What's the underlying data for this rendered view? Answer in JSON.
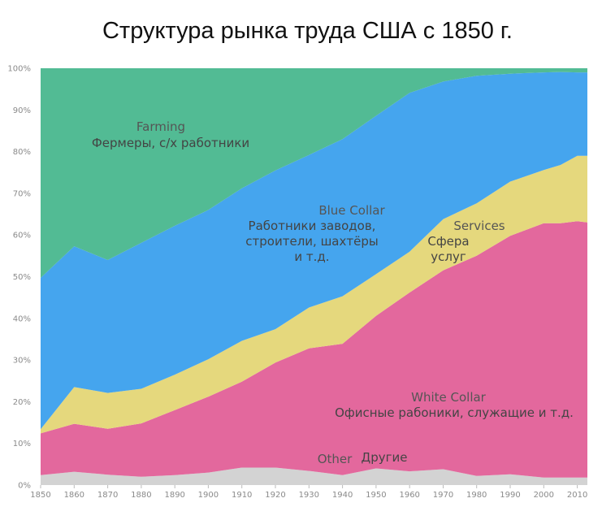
{
  "chart_data": {
    "type": "area",
    "title": "Структура рынка труда США с 1850 г.",
    "x": [
      1850,
      1860,
      1870,
      1880,
      1890,
      1900,
      1910,
      1920,
      1930,
      1940,
      1950,
      1960,
      1970,
      1980,
      1990,
      2000,
      2005,
      2010,
      2013
    ],
    "x_ticks": [
      "1850",
      "1860",
      "1870",
      "1880",
      "1890",
      "1900",
      "1910",
      "1920",
      "1930",
      "1940",
      "1950",
      "1960",
      "1970",
      "1980",
      "1990",
      "2000",
      "2010"
    ],
    "y_ticks": [
      "0%",
      "10%",
      "20%",
      "30%",
      "40%",
      "50%",
      "60%",
      "70%",
      "80%",
      "90%",
      "100%"
    ],
    "ylim": [
      0,
      100
    ],
    "stacked": true,
    "series": [
      {
        "name": "Other",
        "label_ru": "Другие",
        "color": "#d3d3d3",
        "values": [
          2.4,
          3.2,
          2.5,
          2.0,
          2.4,
          3.0,
          4.2,
          4.2,
          3.4,
          2.4,
          4.0,
          3.3,
          3.8,
          2.2,
          2.6,
          1.8,
          1.8,
          1.8,
          1.8
        ]
      },
      {
        "name": "White Collar",
        "label_ru": "Офисные рабоники, служащие и т.д.",
        "color": "#e3689d",
        "values": [
          10.0,
          11.5,
          11.0,
          12.8,
          15.6,
          18.2,
          20.6,
          25.2,
          29.4,
          31.5,
          36.6,
          42.9,
          47.7,
          52.8,
          57.2,
          61.0,
          61.0,
          61.5,
          61.2
        ]
      },
      {
        "name": "Services",
        "label_ru": "Сфера услуг",
        "color": "#e5d87d",
        "values": [
          1.0,
          8.8,
          8.6,
          8.3,
          8.5,
          9.0,
          9.8,
          8.0,
          9.8,
          11.4,
          10.0,
          9.8,
          12.3,
          12.6,
          13.0,
          12.8,
          14.0,
          15.7,
          16.0
        ]
      },
      {
        "name": "Blue Collar",
        "label_ru": "Работники заводов, строители, шахтёры и т.д.",
        "color": "#45a5ee",
        "values": [
          36.3,
          33.8,
          31.9,
          35.0,
          35.7,
          35.8,
          36.6,
          38.1,
          36.6,
          37.7,
          38.0,
          38.1,
          33.0,
          30.6,
          25.9,
          23.4,
          22.3,
          20.0,
          20.0
        ]
      },
      {
        "name": "Farming",
        "label_ru": "Фермеры, с/х работники",
        "color": "#52bb94",
        "values": [
          50.3,
          42.7,
          46.0,
          41.9,
          37.8,
          34.0,
          28.8,
          24.5,
          20.8,
          17.0,
          11.4,
          5.9,
          3.2,
          1.8,
          1.3,
          1.0,
          0.9,
          1.0,
          1.0
        ]
      }
    ],
    "annotations": {
      "farming_en": "Farming",
      "farming_ru": "Фермеры, с/х работники",
      "blue_en": "Blue Collar",
      "blue_ru_1": "Работники заводов,",
      "blue_ru_2": "строители, шахтёры",
      "blue_ru_3": "и т.д.",
      "services_en": "Services",
      "services_ru_1": "Сфера",
      "services_ru_2": "услуг",
      "white_en": "White Collar",
      "white_ru": "Офисные рабоники, служащие и т.д.",
      "other_en": "Other",
      "other_ru": "Другие"
    }
  }
}
